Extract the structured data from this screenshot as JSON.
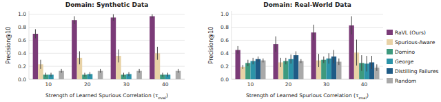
{
  "chart_data": [
    {
      "type": "bar",
      "title": "Domain: Synthetic Data",
      "x_label": "Strength of Learned Spurious Correlation (τeval)",
      "y_label": "Precision@10",
      "categories": [
        "10",
        "20",
        "30",
        "40"
      ],
      "ylim": [
        0,
        1.05
      ],
      "yticks": [
        {
          "value": 0,
          "label": "0.0"
        },
        {
          "value": 0.2,
          "label": "0.2"
        },
        {
          "value": 0.4,
          "label": "0.4"
        },
        {
          "value": 0.6,
          "label": "0.6"
        },
        {
          "value": 0.8,
          "label": "0.8"
        },
        {
          "value": 1,
          "label": "1.0"
        }
      ],
      "grid": true,
      "series": [
        {
          "color": "#7b3b78",
          "values": [
            0.7,
            0.91,
            0.95,
            0.97
          ],
          "errors": [
            0.07,
            0.06,
            0.05,
            0.03
          ]
        },
        {
          "color": "#e8d2a6",
          "values": [
            0.23,
            0.33,
            0.36,
            0.4
          ],
          "errors": [
            0.07,
            0.1,
            0.1,
            0.1
          ]
        },
        {
          "color": "#3e9a7e",
          "values": [
            0.07,
            0.07,
            0.07,
            0.07
          ],
          "errors": [
            0.03,
            0.03,
            0.03,
            0.03
          ]
        },
        {
          "color": "#2c93a8",
          "values": [
            0.07,
            0.08,
            0.08,
            0.07
          ],
          "errors": [
            0.03,
            0.03,
            0.03,
            0.03
          ]
        },
        {
          "color": "#1f5b86",
          "values": [
            0,
            0,
            0,
            0
          ],
          "errors": [
            0,
            0,
            0,
            0
          ]
        },
        {
          "color": "#a9a9a9",
          "values": [
            0.13,
            0.13,
            0.13,
            0.13
          ],
          "errors": [
            0.03,
            0.03,
            0.03,
            0.03
          ]
        }
      ]
    },
    {
      "type": "bar",
      "title": "Domain: Real-World Data",
      "x_label": "Strength of Learned Spurious Correlation (τeval)",
      "y_label": "Precision@10",
      "categories": [
        "10",
        "20",
        "30",
        "40"
      ],
      "ylim": [
        0,
        1.05
      ],
      "yticks": [
        {
          "value": 0,
          "label": "0.0"
        },
        {
          "value": 0.2,
          "label": "0.2"
        },
        {
          "value": 0.4,
          "label": "0.4"
        },
        {
          "value": 0.6,
          "label": "0.6"
        },
        {
          "value": 0.8,
          "label": "0.8"
        },
        {
          "value": 1,
          "label": "1.0"
        }
      ],
      "grid": true,
      "legend": "right",
      "series": [
        {
          "name": "RaVL (Ours)",
          "color": "#7b3b78",
          "values": [
            0.45,
            0.54,
            0.72,
            0.83
          ],
          "errors": [
            0.06,
            0.12,
            0.12,
            0.14
          ]
        },
        {
          "name": "Spurious-Aware",
          "color": "#e8d2a6",
          "values": [
            0.19,
            0.26,
            0.29,
            0.41
          ],
          "errors": [
            0.03,
            0.07,
            0.1,
            0.2
          ]
        },
        {
          "name": "Domino",
          "color": "#3e9a7e",
          "values": [
            0.25,
            0.28,
            0.3,
            0.25
          ],
          "errors": [
            0.05,
            0.05,
            0.05,
            0.12
          ]
        },
        {
          "name": "George",
          "color": "#2c93a8",
          "values": [
            0.28,
            0.31,
            0.32,
            0.24
          ],
          "errors": [
            0.05,
            0.07,
            0.08,
            0.12
          ]
        },
        {
          "name": "Distilling Failures",
          "color": "#1f5b86",
          "values": [
            0.31,
            0.37,
            0.35,
            0.26
          ],
          "errors": [
            0.04,
            0.06,
            0.1,
            0.1
          ]
        },
        {
          "name": "Random",
          "color": "#a9a9a9",
          "values": [
            0.29,
            0.28,
            0.27,
            0.18
          ],
          "errors": [
            0.03,
            0.03,
            0.05,
            0.05
          ]
        }
      ]
    }
  ]
}
